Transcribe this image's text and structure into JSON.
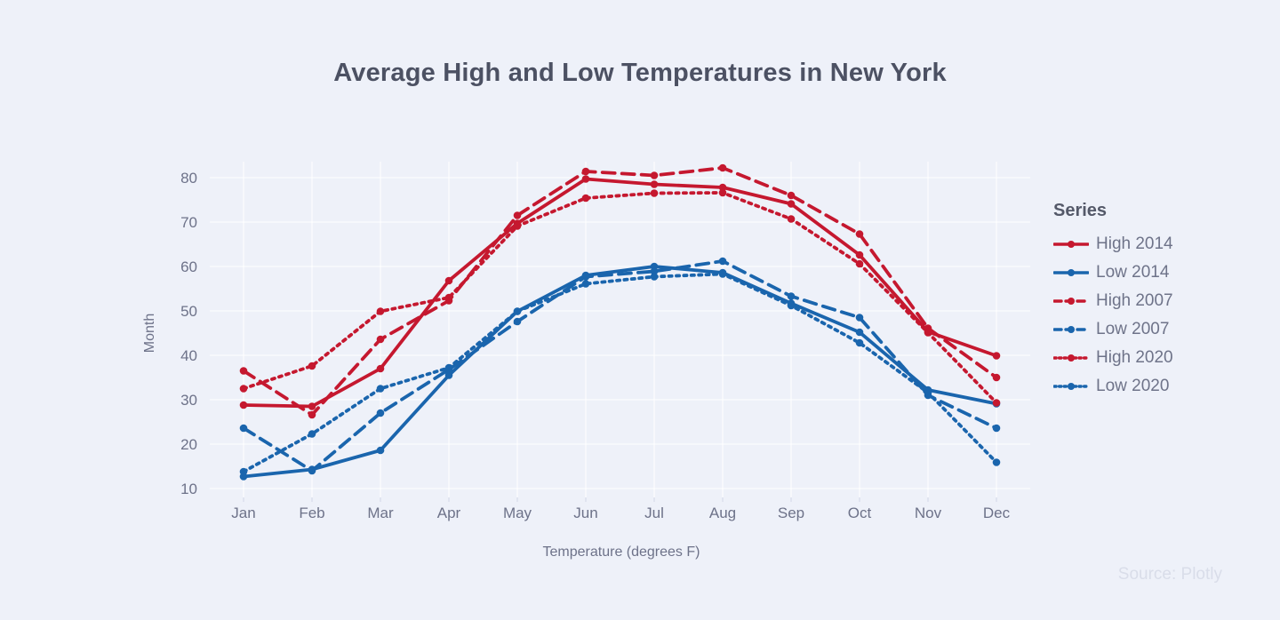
{
  "title": "Average High and Low Temperatures in New York",
  "source": "Source: Plotly",
  "colors": {
    "background": "#eef1f9",
    "red": "#c5182f",
    "blue": "#1a65ad",
    "gridline": "#ffffff",
    "title_text": "#4c5163",
    "axis_text": "#6d7289",
    "source_text": "#d9dde9"
  },
  "chart_data": {
    "type": "line",
    "title": "Average High and Low Temperatures in New York",
    "xlabel": "Temperature (degrees F)",
    "ylabel": "Month",
    "ylim": [
      10,
      80
    ],
    "yticks": [
      10,
      20,
      30,
      40,
      50,
      60,
      70,
      80
    ],
    "grid": true,
    "legend_position": "right",
    "legend_title": "Series",
    "categories": [
      "Jan",
      "Feb",
      "Mar",
      "Apr",
      "May",
      "Jun",
      "Jul",
      "Aug",
      "Sep",
      "Oct",
      "Nov",
      "Dec"
    ],
    "series": [
      {
        "name": "High 2014",
        "color": "#c5182f",
        "dash": "solid",
        "values": [
          28.8,
          28.5,
          37.0,
          56.8,
          69.7,
          79.7,
          78.5,
          77.8,
          74.1,
          62.6,
          45.3,
          39.9
        ]
      },
      {
        "name": "Low 2014",
        "color": "#1a65ad",
        "dash": "solid",
        "values": [
          12.7,
          14.3,
          18.6,
          35.5,
          49.9,
          58.0,
          60.0,
          58.6,
          51.7,
          45.2,
          32.2,
          29.1
        ]
      },
      {
        "name": "High 2007",
        "color": "#c5182f",
        "dash": "dash",
        "values": [
          36.5,
          26.6,
          43.6,
          52.3,
          71.5,
          81.4,
          80.5,
          82.2,
          76.0,
          67.3,
          46.1,
          35.0
        ]
      },
      {
        "name": "Low 2007",
        "color": "#1a65ad",
        "dash": "dash",
        "values": [
          23.6,
          14.0,
          27.0,
          36.8,
          47.6,
          57.7,
          58.9,
          61.2,
          53.3,
          48.5,
          31.0,
          23.6
        ]
      },
      {
        "name": "High 2020",
        "color": "#c5182f",
        "dash": "dot",
        "values": [
          32.5,
          37.6,
          49.9,
          53.0,
          69.1,
          75.4,
          76.5,
          76.6,
          70.7,
          60.6,
          45.1,
          29.3
        ]
      },
      {
        "name": "Low 2020",
        "color": "#1a65ad",
        "dash": "dot",
        "values": [
          13.8,
          22.3,
          32.5,
          37.2,
          49.9,
          56.1,
          57.7,
          58.3,
          51.2,
          42.8,
          31.6,
          15.9
        ]
      }
    ]
  }
}
